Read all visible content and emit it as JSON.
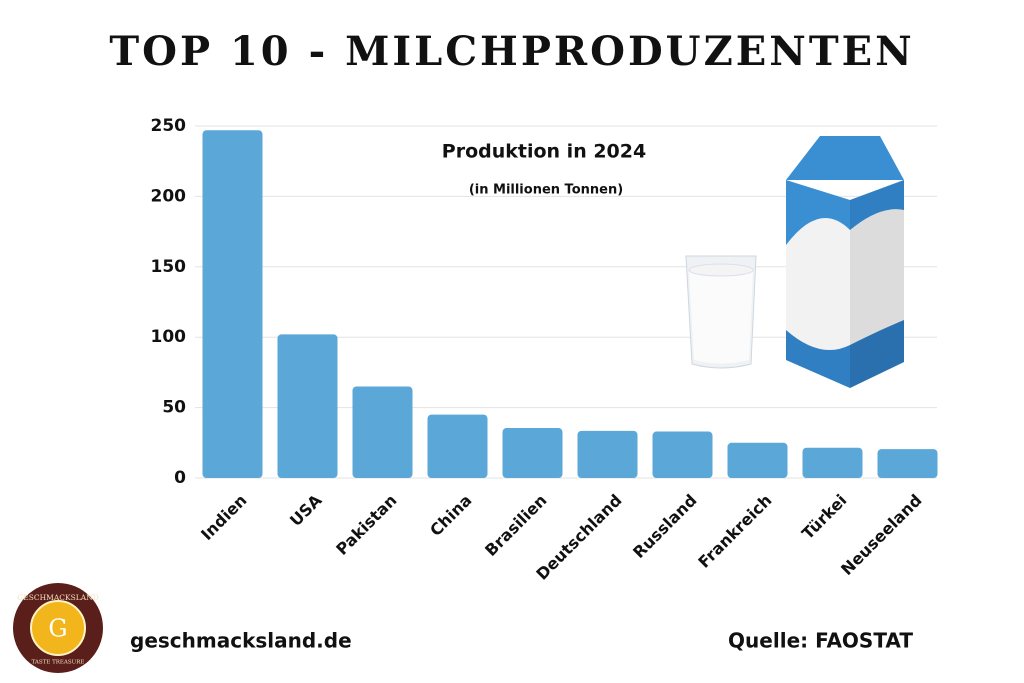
{
  "chart_data": {
    "type": "bar",
    "title": "TOP 10 - MILCHPRODUZENTEN",
    "subtitle": "Produktion in 2024",
    "unit_note": "(in Millionen Tonnen)",
    "categories": [
      "Indien",
      "USA",
      "Pakistan",
      "China",
      "Brasilien",
      "Deutschland",
      "Russland",
      "Frankreich",
      "Türkei",
      "Neuseeland"
    ],
    "values": [
      247,
      102,
      65,
      45,
      35.5,
      33.5,
      33,
      25,
      21.5,
      20.5
    ],
    "color": "#5ba7d8",
    "ylim": [
      0,
      250
    ],
    "yticks": [
      0,
      50,
      100,
      150,
      200,
      250
    ],
    "grid": true
  },
  "footer": {
    "site": "geschmacksland.de",
    "source": "Quelle: FAOSTAT"
  },
  "logo": {
    "top": "GESCHMACKSLAND",
    "letter": "G",
    "bottom": "TASTE TREASURE"
  }
}
